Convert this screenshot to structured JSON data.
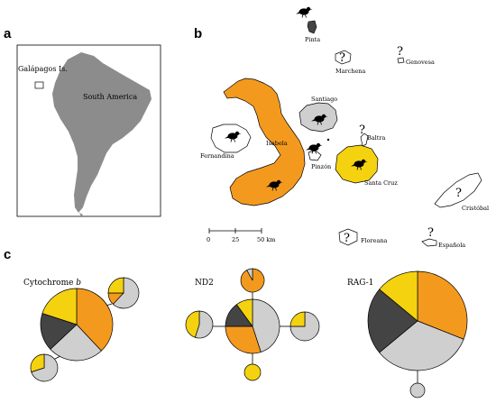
{
  "panels": {
    "a": "a",
    "b": "b",
    "c": "c"
  },
  "panel_a": {
    "galapagos_label": "Galápagos Is.",
    "continent_label": "South America"
  },
  "panel_b": {
    "islands": {
      "pinta": "Pinta",
      "marchena": "Marchena",
      "genovesa": "Genovesa",
      "santiago": "Santiago",
      "fernandina": "Fernandina",
      "isabela": "Isabela",
      "baltra": "Baltra",
      "pinzon": "Pinzón",
      "santa_cruz": "Santa Cruz",
      "cristobal": "Cristóbal",
      "floreana": "Floreana",
      "espanola": "Española"
    },
    "unknown_marker": "?",
    "scale": {
      "ticks": [
        "0",
        "25",
        "50 km"
      ]
    }
  },
  "panel_c": {
    "cytb_label": "Cytochrome ",
    "cytb_italic": "b",
    "nd2_label": "ND2",
    "rag1_label": "RAG-1"
  },
  "colors": {
    "isabela": "#f39a1e",
    "santa_cruz": "#f5d20f",
    "santiago": "#cfcfcf",
    "pinta": "#444444",
    "continent": "#8c8c8c"
  }
}
